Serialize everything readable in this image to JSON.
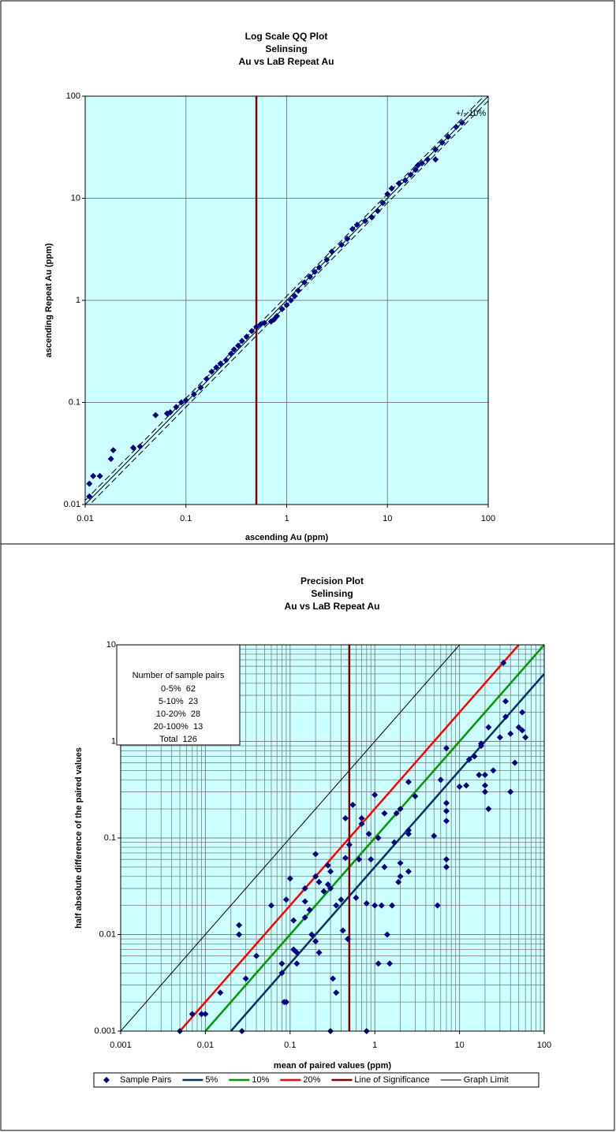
{
  "chart_data": [
    {
      "type": "scatter",
      "title_lines": [
        "Log Scale QQ Plot",
        "Selinsing",
        "Au vs  LaB Repeat Au"
      ],
      "x_label": "ascending Au (ppm)",
      "y_label": "ascending Repeat Au (ppm)",
      "log_x": true,
      "log_y": true,
      "grid": "major",
      "xlim": [
        0.01,
        100
      ],
      "ylim": [
        0.01,
        100
      ],
      "xticks": [
        0.01,
        0.1,
        1,
        10,
        100
      ],
      "yticks": [
        0.01,
        0.1,
        1,
        10,
        100
      ],
      "annotation": "+/- 10%",
      "series": [
        {
          "mark": "line",
          "style": "thin",
          "color": "#000000",
          "x": [
            0.01,
            100
          ],
          "values": [
            0.01,
            100
          ]
        },
        {
          "mark": "line",
          "style": "dashed",
          "color": "#000000",
          "x": [
            0.01,
            100
          ],
          "values": [
            0.011,
            110
          ]
        },
        {
          "mark": "line",
          "style": "dashed",
          "color": "#000000",
          "x": [
            0.01,
            100
          ],
          "values": [
            0.009,
            90
          ]
        },
        {
          "mark": "line",
          "style": "thick",
          "color": "#800000",
          "x": [
            0.5,
            0.5
          ],
          "values": [
            0.01,
            100
          ]
        },
        {
          "mark": "diamond",
          "color": "#000080",
          "x": [
            0.011,
            0.011,
            0.012,
            0.014,
            0.018,
            0.019,
            0.03,
            0.035,
            0.05,
            0.065,
            0.07,
            0.08,
            0.09,
            0.1,
            0.12,
            0.14,
            0.16,
            0.18,
            0.2,
            0.22,
            0.25,
            0.28,
            0.3,
            0.33,
            0.36,
            0.4,
            0.45,
            0.5,
            0.55,
            0.6,
            0.7,
            0.75,
            0.8,
            0.9,
            1,
            1.1,
            1.2,
            1.3,
            1.5,
            1.7,
            1.9,
            2.1,
            2.5,
            2.8,
            3.5,
            4,
            4.5,
            5,
            6,
            7,
            8,
            9,
            10,
            11,
            13,
            15,
            17,
            19,
            20,
            22,
            25,
            30,
            30,
            35,
            40,
            48,
            55
          ],
          "values": [
            0.012,
            0.016,
            0.019,
            0.019,
            0.028,
            0.034,
            0.036,
            0.037,
            0.075,
            0.078,
            0.08,
            0.09,
            0.1,
            0.105,
            0.12,
            0.14,
            0.17,
            0.2,
            0.22,
            0.24,
            0.26,
            0.3,
            0.33,
            0.36,
            0.4,
            0.44,
            0.5,
            0.55,
            0.58,
            0.6,
            0.62,
            0.65,
            0.7,
            0.82,
            0.9,
            1.0,
            1.1,
            1.25,
            1.5,
            1.7,
            1.9,
            2.1,
            2.5,
            3.0,
            3.5,
            4,
            5,
            5.5,
            6,
            6.5,
            7.5,
            9,
            11,
            12.5,
            14,
            15,
            17,
            19,
            21,
            22,
            24,
            24,
            30,
            35,
            40,
            50,
            55
          ]
        }
      ]
    },
    {
      "type": "scatter",
      "title_lines": [
        "Precision Plot",
        "Selinsing",
        "Au vs  LaB Repeat Au"
      ],
      "x_label": "mean of paired values  (ppm)",
      "y_label": "half absolute difference of the paired values",
      "log_x": true,
      "log_y": true,
      "grid": "major-minor",
      "xlim": [
        0.001,
        100
      ],
      "ylim": [
        0.001,
        10
      ],
      "xticks": [
        0.001,
        0.01,
        0.1,
        1,
        10,
        100
      ],
      "yticks": [
        0.001,
        0.01,
        0.1,
        1,
        10
      ],
      "legend": "bottom",
      "text_box": {
        "title": "Number of sample pairs",
        "rows": [
          {
            "label": "0-5%",
            "value": 62
          },
          {
            "label": "5-10%",
            "value": 23
          },
          {
            "label": "10-20%",
            "value": 28
          },
          {
            "label": "20-100%",
            "value": 13
          },
          {
            "label": "Total",
            "value": 126
          }
        ]
      },
      "series": [
        {
          "name": "Sample Pairs",
          "mark": "diamond",
          "color": "#000080",
          "x": [
            0.005,
            0.007,
            0.009,
            0.01,
            0.015,
            0.027,
            0.3,
            0.8,
            0.025,
            0.025,
            0.03,
            0.04,
            0.06,
            0.08,
            0.08,
            0.085,
            0.09,
            0.09,
            0.1,
            0.11,
            0.11,
            0.12,
            0.12,
            0.15,
            0.15,
            0.15,
            0.17,
            0.18,
            0.2,
            0.2,
            0.2,
            0.22,
            0.22,
            0.25,
            0.28,
            0.28,
            0.3,
            0.3,
            0.32,
            0.35,
            0.35,
            0.4,
            0.42,
            0.45,
            0.45,
            0.48,
            0.5,
            0.55,
            0.6,
            0.7,
            0.65,
            0.7,
            0.8,
            0.85,
            0.9,
            1,
            1,
            1.1,
            1.1,
            1.2,
            1.3,
            1.3,
            1.4,
            1.5,
            1.6,
            1.7,
            1.8,
            1.9,
            2,
            2,
            2,
            2.5,
            2.5,
            2.5,
            2.5,
            3,
            5,
            5.5,
            6,
            7,
            7,
            7,
            7,
            7,
            7,
            10,
            12,
            13,
            15,
            17,
            18,
            18,
            20,
            20,
            20,
            22,
            22,
            25,
            30,
            33,
            35,
            35,
            40,
            40,
            45,
            50,
            55,
            55,
            60
          ],
          "values": [
            0.001,
            0.0015,
            0.0015,
            0.0015,
            0.0025,
            0.001,
            0.001,
            0.001,
            0.0125,
            0.01,
            0.0035,
            0.006,
            0.02,
            0.005,
            0.004,
            0.002,
            0.002,
            0.023,
            0.038,
            0.014,
            0.007,
            0.005,
            0.0065,
            0.015,
            0.022,
            0.03,
            0.018,
            0.01,
            0.068,
            0.04,
            0.0085,
            0.035,
            0.0065,
            0.028,
            0.033,
            0.052,
            0.03,
            0.045,
            0.0035,
            0.0025,
            0.02,
            0.023,
            0.011,
            0.16,
            0.062,
            0.009,
            0.085,
            0.22,
            0.024,
            0.16,
            0.06,
            0.14,
            0.021,
            0.11,
            0.06,
            0.28,
            0.02,
            0.1,
            0.005,
            0.02,
            0.05,
            0.18,
            0.01,
            0.005,
            0.02,
            0.09,
            0.18,
            0.035,
            0.2,
            0.055,
            0.04,
            0.045,
            0.12,
            0.11,
            0.38,
            0.27,
            0.105,
            0.02,
            0.4,
            0.85,
            0.23,
            0.19,
            0.15,
            0.06,
            0.05,
            0.34,
            0.35,
            0.65,
            0.7,
            0.45,
            0.95,
            0.9,
            0.45,
            0.35,
            0.3,
            0.2,
            1.4,
            0.5,
            1.1,
            6.5,
            1.8,
            2.6,
            0.3,
            1.2,
            0.6,
            1.4,
            2,
            1.3,
            1.1
          ]
        },
        {
          "name": "5%",
          "mark": "line",
          "style": "thick",
          "color": "#003366",
          "x": [
            0.02,
            100
          ],
          "values": [
            0.001,
            5
          ]
        },
        {
          "name": "10%",
          "mark": "line",
          "style": "thick",
          "color": "#009900",
          "x": [
            0.01,
            100
          ],
          "values": [
            0.001,
            10
          ]
        },
        {
          "name": "20%",
          "mark": "line",
          "style": "thick",
          "color": "#ff0000",
          "x": [
            0.005,
            50
          ],
          "values": [
            0.001,
            10
          ]
        },
        {
          "name": "Line of Significance",
          "mark": "line",
          "style": "thick",
          "color": "#800000",
          "x": [
            0.5,
            0.5
          ],
          "values": [
            0.001,
            10
          ]
        },
        {
          "name": "Graph Limit",
          "mark": "line",
          "style": "thin",
          "color": "#000000",
          "x": [
            0.001,
            10
          ],
          "values": [
            0.001,
            10
          ]
        }
      ]
    }
  ]
}
